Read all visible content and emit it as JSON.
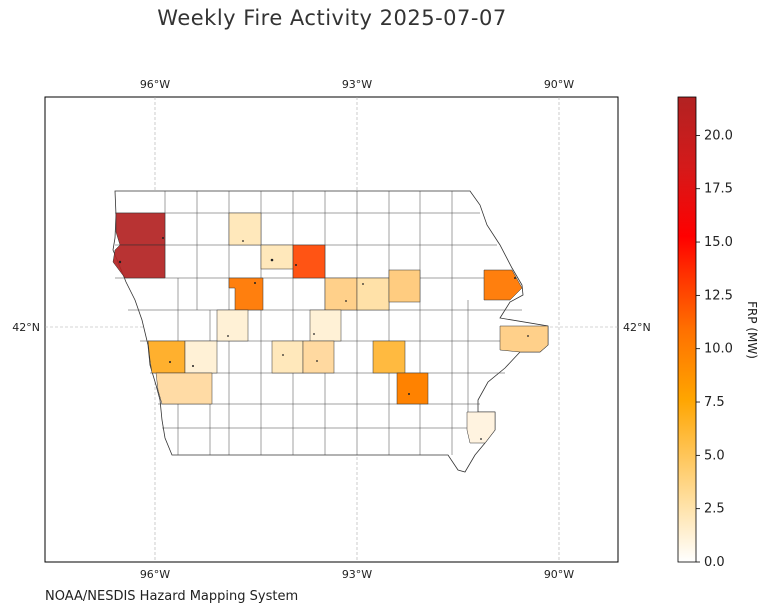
{
  "title": "Weekly Fire Activity 2025-07-07",
  "credit": "NOAA/NESDIS Hazard Mapping System",
  "map": {
    "region": "Iowa",
    "lon_ticks": [
      "96°W",
      "93°W",
      "90°W"
    ],
    "lat_ticks": [
      "42°N"
    ],
    "gridlines": true
  },
  "colorbar": {
    "label": "FRP (MW)",
    "min": 0,
    "max": 21.8,
    "ticks": [
      "0.0",
      "2.5",
      "5.0",
      "7.5",
      "10.0",
      "12.5",
      "15.0",
      "17.5",
      "20.0"
    ],
    "colors": [
      "#ffffff",
      "#fed976",
      "#ffa500",
      "#ff4500",
      "#ff0000",
      "#b22222"
    ]
  },
  "counties_with_fire": [
    {
      "name": "NW county 1",
      "frp": 21.5
    },
    {
      "name": "NW county 2",
      "frp": 21.5
    },
    {
      "name": "Upper county",
      "frp": 12.5
    },
    {
      "name": "NE county",
      "frp": 10.0
    },
    {
      "name": "Central-west county",
      "frp": 10.0
    },
    {
      "name": "South-central county",
      "frp": 9.5
    },
    {
      "name": "SW county",
      "frp": 6.0
    },
    {
      "name": "Central county",
      "frp": 5.0
    },
    {
      "name": "Central-east county",
      "frp": 5.0
    },
    {
      "name": "East county",
      "frp": 3.5
    }
  ]
}
